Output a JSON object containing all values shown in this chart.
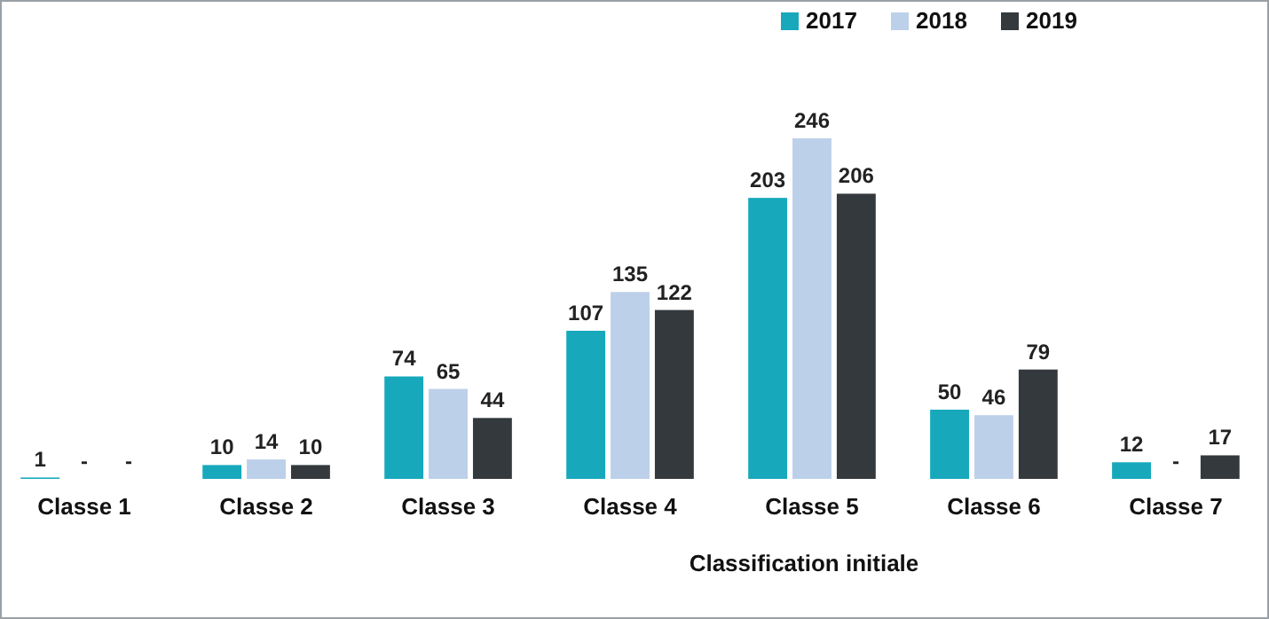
{
  "chart_data": {
    "type": "bar",
    "xlabel": "Classification initiale",
    "categories": [
      "Classe 1",
      "Classe 2",
      "Classe 3",
      "Classe 4",
      "Classe 5",
      "Classe 6",
      "Classe 7"
    ],
    "series": [
      {
        "name": "2017",
        "color": "#17a9bb",
        "values": [
          1,
          10,
          74,
          107,
          203,
          50,
          12
        ],
        "value_labels": [
          "1",
          "10",
          "74",
          "107",
          "203",
          "50",
          "12"
        ]
      },
      {
        "name": "2018",
        "color": "#bcd0ea",
        "values": [
          null,
          14,
          65,
          135,
          246,
          46,
          null
        ],
        "value_labels": [
          "-",
          "14",
          "65",
          "135",
          "246",
          "46",
          "-"
        ]
      },
      {
        "name": "2019",
        "color": "#33393d",
        "values": [
          null,
          10,
          44,
          122,
          206,
          79,
          17
        ],
        "value_labels": [
          "-",
          "10",
          "44",
          "122",
          "206",
          "79",
          "17"
        ]
      }
    ],
    "legend": "top"
  }
}
